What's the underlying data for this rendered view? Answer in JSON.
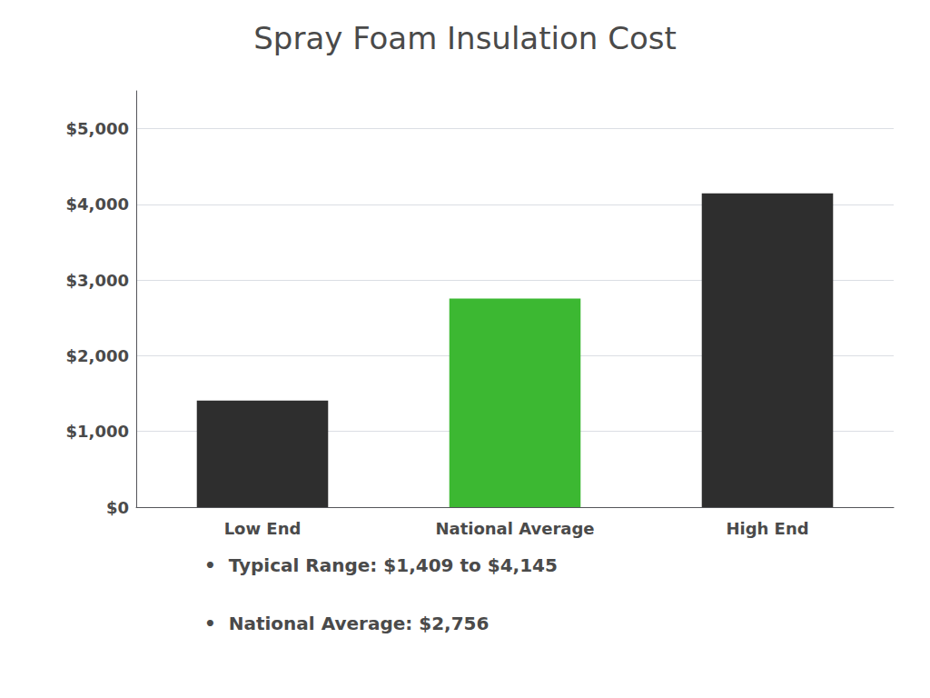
{
  "chart_data": {
    "type": "bar",
    "title": "Spray Foam Insulation Cost",
    "categories": [
      "Low End",
      "National Average",
      "High End"
    ],
    "values": [
      1409,
      2756,
      4145
    ],
    "colors": [
      "#2e2e2e",
      "#3cb832",
      "#2e2e2e"
    ],
    "ylim": [
      0,
      5500
    ],
    "yticks": [
      {
        "value": 0,
        "label": "$0"
      },
      {
        "value": 1000,
        "label": "$1,000"
      },
      {
        "value": 2000,
        "label": "$2,000"
      },
      {
        "value": 3000,
        "label": "$3,000"
      },
      {
        "value": 4000,
        "label": "$4,000"
      },
      {
        "value": 5000,
        "label": "$5,000"
      }
    ],
    "grid": true,
    "annotations": [
      "•  Typical Range: $1,409 to $4,145",
      "•  National Average: $2,756"
    ]
  }
}
